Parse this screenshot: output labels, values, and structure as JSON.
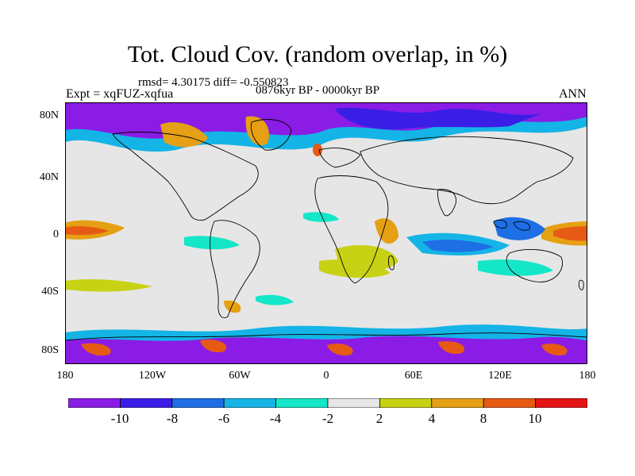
{
  "title": "Tot. Cloud Cov. (random overlap, in %)",
  "stats": "rmsd= 4.30175 diff= -0.550823",
  "period": "0876kyr BP - 0000kyr BP",
  "experiment": "Expt = xqFUZ-xqfua",
  "season": "ANN",
  "map": {
    "projection": "cylindrical-equidistant",
    "lon_range": [
      -180,
      180
    ],
    "lat_range": [
      -90,
      90
    ],
    "background_color": "#e6e6e6",
    "coastline_color": "#000000"
  },
  "lat_labels": [
    "80N",
    "40N",
    "0",
    "40S",
    "80S"
  ],
  "lon_labels": [
    "180",
    "120W",
    "60W",
    "0",
    "60E",
    "120E",
    "180"
  ],
  "colorbar": {
    "labels": [
      "-10",
      "-8",
      "-6",
      "-4",
      "-2",
      "2",
      "4",
      "8",
      "10"
    ],
    "colors": [
      "#8a1ce6",
      "#3a1ee6",
      "#1e6ee6",
      "#14b4e6",
      "#14e6c8",
      "#e6e6e6",
      "#c8d214",
      "#e6a014",
      "#e65a14",
      "#e61414"
    ]
  }
}
